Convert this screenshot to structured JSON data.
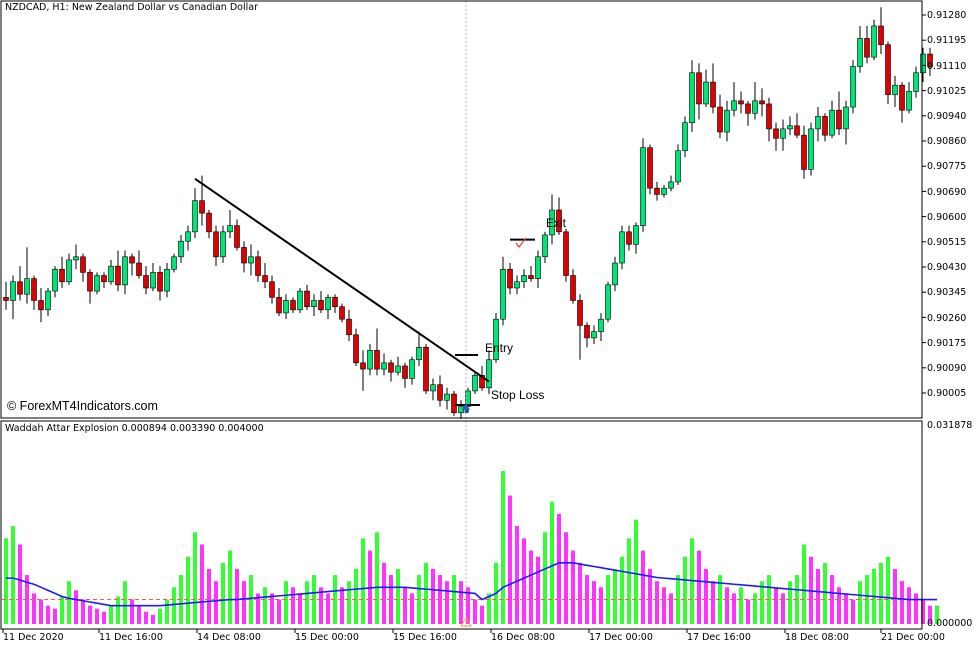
{
  "main_chart": {
    "title": "NZDCAD, H1:  New Zealand Dollar vs Canadian Dollar",
    "watermark": "© ForexMT4Indicators.com",
    "y_ticks": [
      "0.91280",
      "0.91195",
      "0.91110",
      "0.91025",
      "0.90940",
      "0.90860",
      "0.90775",
      "0.90690",
      "0.90600",
      "0.90515",
      "0.90430",
      "0.90345",
      "0.90260",
      "0.90175",
      "0.90090",
      "0.90005"
    ],
    "annotations": {
      "entry": "Entry",
      "stop_loss": "Stop Loss",
      "exit": "Exit"
    },
    "colors": {
      "bull": "#00e676",
      "bear": "#e00000",
      "wick": "#000000",
      "trendline": "#000000",
      "arrow": "#1f5fbf",
      "cross": "#e8473b"
    }
  },
  "indicator": {
    "title": "Waddah Attar Explosion 0.000894 0.003390 0.004000",
    "y_ticks": [
      "0.031878",
      "0.000000"
    ],
    "colors": {
      "up_bar": "#33ff33",
      "down_bar": "#ff33ff",
      "line": "#1a1aff",
      "deadzone": "#ff5555"
    }
  },
  "x_ticks": [
    "11 Dec 2020",
    "11 Dec 16:00",
    "14 Dec 08:00",
    "15 Dec 00:00",
    "15 Dec 16:00",
    "16 Dec 08:00",
    "17 Dec 00:00",
    "17 Dec 16:00",
    "18 Dec 08:00",
    "21 Dec 00:00"
  ],
  "chart_data": [
    {
      "type": "candlestick",
      "title": "NZDCAD, H1:  New Zealand Dollar vs Canadian Dollar",
      "ylim": [
        0.8998,
        0.9132
      ],
      "bars_estimated": [
        [
          0.9037,
          0.9042,
          0.9033,
          0.9036
        ],
        [
          0.9036,
          0.9044,
          0.903,
          0.9042
        ],
        [
          0.9042,
          0.9047,
          0.9036,
          0.9038
        ],
        [
          0.9038,
          0.9053,
          0.9035,
          0.9043
        ],
        [
          0.9043,
          0.9044,
          0.9033,
          0.9036
        ],
        [
          0.9036,
          0.904,
          0.9029,
          0.9033
        ],
        [
          0.9033,
          0.904,
          0.9031,
          0.9039
        ],
        [
          0.9039,
          0.9047,
          0.9037,
          0.9046
        ],
        [
          0.9046,
          0.905,
          0.904,
          0.9042
        ],
        [
          0.9042,
          0.9051,
          0.9041,
          0.9049
        ],
        [
          0.9049,
          0.9054,
          0.9046,
          0.905
        ],
        [
          0.905,
          0.9051,
          0.9042,
          0.9045
        ],
        [
          0.9045,
          0.9046,
          0.9035,
          0.9039
        ],
        [
          0.9039,
          0.9045,
          0.9038,
          0.9044
        ],
        [
          0.9044,
          0.9045,
          0.904,
          0.9042
        ],
        [
          0.9042,
          0.9049,
          0.9041,
          0.9047
        ],
        [
          0.9047,
          0.9052,
          0.9039,
          0.9041
        ],
        [
          0.9041,
          0.9052,
          0.9038,
          0.905
        ],
        [
          0.905,
          0.9051,
          0.9044,
          0.9048
        ],
        [
          0.9048,
          0.9052,
          0.9043,
          0.9044
        ],
        [
          0.9044,
          0.9047,
          0.9038,
          0.904
        ],
        [
          0.904,
          0.9048,
          0.9039,
          0.9045
        ],
        [
          0.9045,
          0.9047,
          0.9036,
          0.9039
        ],
        [
          0.9039,
          0.9048,
          0.9037,
          0.9046
        ],
        [
          0.9046,
          0.9051,
          0.9045,
          0.905
        ],
        [
          0.905,
          0.9057,
          0.9048,
          0.9055
        ],
        [
          0.9055,
          0.906,
          0.9052,
          0.9058
        ],
        [
          0.9058,
          0.9072,
          0.9056,
          0.9068
        ],
        [
          0.9068,
          0.9076,
          0.906,
          0.9064
        ],
        [
          0.9064,
          0.9065,
          0.9056,
          0.9058
        ],
        [
          0.9058,
          0.906,
          0.9047,
          0.905
        ],
        [
          0.905,
          0.906,
          0.9048,
          0.9058
        ],
        [
          0.9058,
          0.9065,
          0.9056,
          0.906
        ],
        [
          0.906,
          0.9062,
          0.9052,
          0.9053
        ],
        [
          0.9053,
          0.9055,
          0.9045,
          0.9048
        ],
        [
          0.9048,
          0.9054,
          0.9044,
          0.905
        ],
        [
          0.905,
          0.9052,
          0.9042,
          0.9044
        ],
        [
          0.9044,
          0.9048,
          0.904,
          0.9042
        ],
        [
          0.9042,
          0.9044,
          0.9035,
          0.9037
        ],
        [
          0.9037,
          0.904,
          0.9031,
          0.9032
        ],
        [
          0.9032,
          0.9038,
          0.903,
          0.9036
        ],
        [
          0.9036,
          0.9037,
          0.9032,
          0.9033
        ],
        [
          0.9033,
          0.904,
          0.9032,
          0.9039
        ],
        [
          0.9039,
          0.9041,
          0.9033,
          0.9034
        ],
        [
          0.9034,
          0.9038,
          0.9031,
          0.9036
        ],
        [
          0.9036,
          0.9039,
          0.9032,
          0.9033
        ],
        [
          0.9033,
          0.9038,
          0.903,
          0.9037
        ],
        [
          0.9037,
          0.9038,
          0.9032,
          0.9034
        ],
        [
          0.9034,
          0.9035,
          0.9029,
          0.903
        ],
        [
          0.903,
          0.9033,
          0.9023,
          0.9025
        ],
        [
          0.9025,
          0.9027,
          0.9015,
          0.9016
        ],
        [
          0.9016,
          0.902,
          0.9007,
          0.9014
        ],
        [
          0.9014,
          0.9022,
          0.9012,
          0.902
        ],
        [
          0.902,
          0.9027,
          0.9012,
          0.9014
        ],
        [
          0.9014,
          0.9019,
          0.9012,
          0.9016
        ],
        [
          0.9016,
          0.9017,
          0.901,
          0.9013
        ],
        [
          0.9013,
          0.9018,
          0.9012,
          0.9015
        ],
        [
          0.9015,
          0.9016,
          0.9008,
          0.9011
        ],
        [
          0.9011,
          0.9018,
          0.9009,
          0.9017
        ],
        [
          0.9017,
          0.9026,
          0.9015,
          0.9021
        ],
        [
          0.9021,
          0.9022,
          0.9006,
          0.9007
        ],
        [
          0.9007,
          0.9011,
          0.9004,
          0.9009
        ],
        [
          0.9009,
          0.9012,
          0.9002,
          0.9004
        ],
        [
          0.9004,
          0.9008,
          0.9001,
          0.9006
        ],
        [
          0.9006,
          0.9007,
          0.8999,
          0.9
        ],
        [
          0.9,
          0.9004,
          0.8998,
          0.9002
        ],
        [
          0.9002,
          0.9008,
          0.9,
          0.9007
        ],
        [
          0.9007,
          0.9013,
          0.9006,
          0.9012
        ],
        [
          0.9012,
          0.9015,
          0.9007,
          0.9008
        ],
        [
          0.9008,
          0.902,
          0.9006,
          0.9017
        ],
        [
          0.9017,
          0.9032,
          0.9016,
          0.903
        ],
        [
          0.903,
          0.905,
          0.9028,
          0.9046
        ],
        [
          0.9046,
          0.9048,
          0.9038,
          0.904
        ],
        [
          0.904,
          0.9044,
          0.9038,
          0.9042
        ],
        [
          0.9042,
          0.9046,
          0.904,
          0.9044
        ],
        [
          0.9044,
          0.9047,
          0.9042,
          0.9043
        ],
        [
          0.9043,
          0.9052,
          0.904,
          0.905
        ],
        [
          0.905,
          0.9058,
          0.9048,
          0.9057
        ],
        [
          0.9057,
          0.907,
          0.9054,
          0.9065
        ],
        [
          0.9065,
          0.9069,
          0.9057,
          0.9058
        ],
        [
          0.9058,
          0.9059,
          0.9042,
          0.9044
        ],
        [
          0.9044,
          0.9046,
          0.9035,
          0.9036
        ],
        [
          0.9036,
          0.9038,
          0.9017,
          0.9028
        ],
        [
          0.9028,
          0.9029,
          0.9021,
          0.9024
        ],
        [
          0.9024,
          0.9028,
          0.9022,
          0.9026
        ],
        [
          0.9026,
          0.9032,
          0.9023,
          0.903
        ],
        [
          0.903,
          0.9042,
          0.9029,
          0.9041
        ],
        [
          0.9041,
          0.905,
          0.9039,
          0.9048
        ],
        [
          0.9048,
          0.906,
          0.9046,
          0.9058
        ],
        [
          0.9058,
          0.906,
          0.9052,
          0.9054
        ],
        [
          0.9054,
          0.9061,
          0.9051,
          0.906
        ],
        [
          0.906,
          0.9088,
          0.9058,
          0.9085
        ],
        [
          0.9085,
          0.9086,
          0.907,
          0.9072
        ],
        [
          0.9072,
          0.9074,
          0.9068,
          0.907
        ],
        [
          0.907,
          0.9073,
          0.9069,
          0.9072
        ],
        [
          0.9072,
          0.9076,
          0.9071,
          0.9074
        ],
        [
          0.9074,
          0.9086,
          0.9073,
          0.9084
        ],
        [
          0.9084,
          0.9095,
          0.9082,
          0.9093
        ],
        [
          0.9093,
          0.9113,
          0.909,
          0.9109
        ],
        [
          0.9109,
          0.9112,
          0.9094,
          0.9099
        ],
        [
          0.9099,
          0.911,
          0.9098,
          0.9106
        ],
        [
          0.9106,
          0.9112,
          0.9096,
          0.9098
        ],
        [
          0.9098,
          0.9102,
          0.9088,
          0.909
        ],
        [
          0.909,
          0.91,
          0.9087,
          0.9097
        ],
        [
          0.9097,
          0.9106,
          0.9095,
          0.91
        ],
        [
          0.91,
          0.9103,
          0.9096,
          0.9099
        ],
        [
          0.9099,
          0.91,
          0.9092,
          0.9096
        ],
        [
          0.9096,
          0.9106,
          0.9094,
          0.91
        ],
        [
          0.91,
          0.9104,
          0.9095,
          0.9099
        ],
        [
          0.9099,
          0.9101,
          0.9087,
          0.9091
        ],
        [
          0.9091,
          0.9093,
          0.9084,
          0.9088
        ],
        [
          0.9088,
          0.9094,
          0.9084,
          0.9091
        ],
        [
          0.9091,
          0.9095,
          0.9089,
          0.9092
        ],
        [
          0.9092,
          0.9096,
          0.9088,
          0.9089
        ],
        [
          0.9089,
          0.9092,
          0.9075,
          0.9078
        ],
        [
          0.9078,
          0.9093,
          0.9076,
          0.9091
        ],
        [
          0.9091,
          0.9098,
          0.9087,
          0.9095
        ],
        [
          0.9095,
          0.9096,
          0.9087,
          0.9089
        ],
        [
          0.9089,
          0.91,
          0.9088,
          0.9097
        ],
        [
          0.9097,
          0.9103,
          0.9089,
          0.9091
        ],
        [
          0.9091,
          0.91,
          0.9086,
          0.9098
        ],
        [
          0.9098,
          0.9113,
          0.9096,
          0.9111
        ],
        [
          0.9111,
          0.9124,
          0.9109,
          0.912
        ],
        [
          0.912,
          0.9124,
          0.9112,
          0.9114
        ],
        [
          0.9114,
          0.9126,
          0.9113,
          0.9124
        ],
        [
          0.9124,
          0.913,
          0.9115,
          0.9118
        ],
        [
          0.9118,
          0.9119,
          0.9099,
          0.9102
        ],
        [
          0.9102,
          0.9108,
          0.9098,
          0.9105
        ],
        [
          0.9105,
          0.9106,
          0.9093,
          0.9097
        ],
        [
          0.9097,
          0.9106,
          0.9096,
          0.9103
        ],
        [
          0.9103,
          0.9111,
          0.9101,
          0.9109
        ],
        [
          0.9109,
          0.9117,
          0.9106,
          0.9115
        ],
        [
          0.9115,
          0.9117,
          0.9108,
          0.9111
        ]
      ],
      "trendline": {
        "from": [
          27,
          0.9075
        ],
        "to": [
          69,
          0.901
        ]
      },
      "levels": {
        "entry": 0.90185,
        "stop_loss": 0.90025,
        "exit": 0.90555
      }
    },
    {
      "type": "bar",
      "title": "Waddah Attar Explosion 0.000894 0.003390 0.004000",
      "ylim": [
        0,
        0.031878
      ],
      "series": [
        {
          "values_estimated": [
            0.014,
            0.016,
            0.013,
            0.008,
            0.005,
            0.004,
            0.003,
            0.0025,
            0.0045,
            0.007,
            0.0055,
            0.004,
            0.003,
            0.0025,
            0.002,
            0.003,
            0.0045,
            0.007,
            0.004,
            0.003,
            0.002,
            0.0015,
            0.0025,
            0.004,
            0.006,
            0.008,
            0.011,
            0.015,
            0.013,
            0.009,
            0.007,
            0.01,
            0.012,
            0.009,
            0.007,
            0.008,
            0.005,
            0.006,
            0.005,
            0.004,
            0.007,
            0.006,
            0.005,
            0.007,
            0.008,
            0.006,
            0.005,
            0.008,
            0.006,
            0.007,
            0.009,
            0.014,
            0.012,
            0.015,
            0.01,
            0.008,
            0.009,
            0.006,
            0.005,
            0.008,
            0.01,
            0.009,
            0.008,
            0.007,
            0.008,
            0.007,
            0.006,
            0.004,
            0.003,
            0.005,
            0.01,
            0.025,
            0.021,
            0.016,
            0.014,
            0.012,
            0.011,
            0.015,
            0.02,
            0.018,
            0.015,
            0.012,
            0.01,
            0.008,
            0.007,
            0.006,
            0.008,
            0.009,
            0.011,
            0.014,
            0.017,
            0.012,
            0.009,
            0.007,
            0.006,
            0.005,
            0.008,
            0.011,
            0.014,
            0.012,
            0.009,
            0.007,
            0.008,
            0.006,
            0.005,
            0.006,
            0.004,
            0.005,
            0.007,
            0.008,
            0.006,
            0.005,
            0.007,
            0.008,
            0.013,
            0.011,
            0.009,
            0.01,
            0.008,
            0.006,
            0.005,
            0.004,
            0.007,
            0.008,
            0.009,
            0.01,
            0.011,
            0.009,
            0.007,
            0.006,
            0.005,
            0.004,
            0.003,
            0.003
          ]
        },
        {
          "name": "line_values_estimated",
          "values": [
            0.0075,
            0.0075,
            0.0072,
            0.0068,
            0.0065,
            0.006,
            0.0055,
            0.005,
            0.0045,
            0.0042,
            0.004,
            0.0038,
            0.0036,
            0.0034,
            0.0032,
            0.003,
            0.003,
            0.003,
            0.003,
            0.003,
            0.003,
            0.003,
            0.003,
            0.0031,
            0.0032,
            0.0033,
            0.0034,
            0.0035,
            0.0036,
            0.0037,
            0.0038,
            0.0039,
            0.004,
            0.004,
            0.0041,
            0.0042,
            0.0043,
            0.0044,
            0.0045,
            0.0046,
            0.0047,
            0.0048,
            0.0049,
            0.005,
            0.0051,
            0.0052,
            0.0053,
            0.0054,
            0.0055,
            0.0056,
            0.0057,
            0.0058,
            0.0059,
            0.006,
            0.006,
            0.006,
            0.006,
            0.006,
            0.0059,
            0.0058,
            0.0057,
            0.0056,
            0.0055,
            0.0054,
            0.0053,
            0.0052,
            0.0051,
            0.005,
            0.004,
            0.0045,
            0.005,
            0.006,
            0.0065,
            0.007,
            0.0075,
            0.008,
            0.0085,
            0.009,
            0.0095,
            0.01,
            0.01,
            0.01,
            0.0098,
            0.0096,
            0.0094,
            0.0092,
            0.009,
            0.0088,
            0.0086,
            0.0084,
            0.0082,
            0.008,
            0.0078,
            0.0076,
            0.0075,
            0.0074,
            0.0073,
            0.0072,
            0.0071,
            0.007,
            0.0069,
            0.0068,
            0.0067,
            0.0066,
            0.0065,
            0.0064,
            0.0063,
            0.0062,
            0.0061,
            0.006,
            0.0059,
            0.0058,
            0.0057,
            0.0056,
            0.0055,
            0.0054,
            0.0053,
            0.0052,
            0.0051,
            0.005,
            0.0049,
            0.0048,
            0.0047,
            0.0046,
            0.0045,
            0.0044,
            0.0043,
            0.0042,
            0.0041,
            0.004,
            0.004,
            0.004,
            0.004,
            0.004
          ]
        }
      ],
      "deadzone": 0.004
    }
  ]
}
